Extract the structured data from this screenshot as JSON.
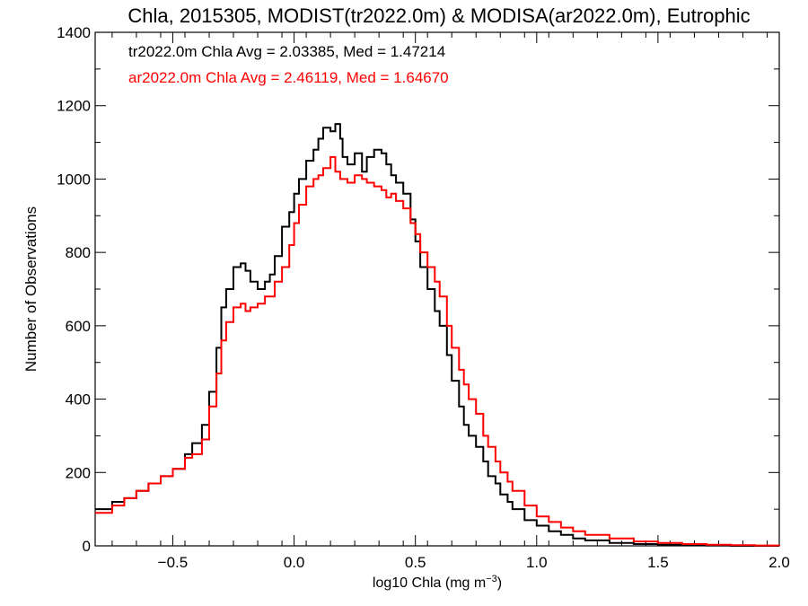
{
  "chart_data": {
    "type": "line",
    "title": "Chla, 2015305, MODIST(tr2022.0m) & MODISA(ar2022.0m), Eutrophic",
    "xlabel_main": "log10 Chla (mg m",
    "xlabel_sup": "−3",
    "xlabel_close": ")",
    "ylabel": "Number of Observations",
    "xlim": [
      -0.82,
      2.0
    ],
    "ylim": [
      0,
      1400
    ],
    "xticks": [
      -0.5,
      0.0,
      0.5,
      1.0,
      1.5,
      2.0
    ],
    "xtick_labels": [
      "−0.5",
      "0.0",
      "0.5",
      "1.0",
      "1.5",
      "2.0"
    ],
    "yticks": [
      0,
      200,
      400,
      600,
      800,
      1000,
      1200,
      1400
    ],
    "ytick_labels": [
      "0",
      "200",
      "400",
      "600",
      "800",
      "1000",
      "1200",
      "1400"
    ],
    "grid": false,
    "series": [
      {
        "name": "tr2022.0m",
        "color": "#000000",
        "annotation": "tr2022.0m Chla Avg = 2.03385, Med = 1.47214",
        "x": [
          -0.82,
          -0.75,
          -0.7,
          -0.65,
          -0.6,
          -0.55,
          -0.5,
          -0.45,
          -0.42,
          -0.38,
          -0.35,
          -0.32,
          -0.3,
          -0.28,
          -0.25,
          -0.22,
          -0.2,
          -0.18,
          -0.15,
          -0.12,
          -0.1,
          -0.08,
          -0.05,
          -0.02,
          0.0,
          0.02,
          0.05,
          0.08,
          0.1,
          0.12,
          0.15,
          0.17,
          0.19,
          0.2,
          0.22,
          0.25,
          0.28,
          0.3,
          0.33,
          0.36,
          0.38,
          0.4,
          0.42,
          0.45,
          0.48,
          0.5,
          0.52,
          0.55,
          0.58,
          0.6,
          0.63,
          0.65,
          0.68,
          0.7,
          0.72,
          0.75,
          0.78,
          0.8,
          0.83,
          0.85,
          0.88,
          0.9,
          0.95,
          1.0,
          1.05,
          1.1,
          1.15,
          1.2,
          1.3,
          1.4,
          1.5,
          1.6,
          1.7,
          1.8,
          1.9,
          2.0
        ],
        "values": [
          100,
          120,
          130,
          150,
          170,
          190,
          210,
          250,
          280,
          330,
          420,
          540,
          650,
          700,
          760,
          770,
          750,
          720,
          700,
          720,
          740,
          790,
          870,
          910,
          960,
          1000,
          1050,
          1080,
          1110,
          1140,
          1130,
          1150,
          1110,
          1060,
          1040,
          1070,
          1020,
          1060,
          1080,
          1070,
          1040,
          1010,
          990,
          960,
          890,
          830,
          760,
          700,
          640,
          600,
          520,
          450,
          380,
          330,
          300,
          270,
          230,
          190,
          170,
          140,
          120,
          100,
          70,
          55,
          40,
          30,
          20,
          15,
          8,
          5,
          3,
          2,
          1,
          0,
          0,
          0
        ]
      },
      {
        "name": "ar2022.0m",
        "color": "#ff0000",
        "annotation": "ar2022.0m Chla Avg = 2.46119, Med = 1.64670",
        "x": [
          -0.82,
          -0.75,
          -0.7,
          -0.65,
          -0.6,
          -0.55,
          -0.5,
          -0.45,
          -0.42,
          -0.38,
          -0.35,
          -0.32,
          -0.3,
          -0.28,
          -0.25,
          -0.22,
          -0.2,
          -0.18,
          -0.15,
          -0.12,
          -0.1,
          -0.08,
          -0.05,
          -0.02,
          0.0,
          0.02,
          0.05,
          0.08,
          0.1,
          0.12,
          0.15,
          0.17,
          0.19,
          0.2,
          0.22,
          0.25,
          0.28,
          0.3,
          0.33,
          0.36,
          0.38,
          0.4,
          0.42,
          0.45,
          0.48,
          0.5,
          0.52,
          0.55,
          0.58,
          0.6,
          0.63,
          0.65,
          0.68,
          0.7,
          0.72,
          0.75,
          0.78,
          0.8,
          0.83,
          0.85,
          0.88,
          0.9,
          0.95,
          1.0,
          1.05,
          1.1,
          1.15,
          1.2,
          1.3,
          1.4,
          1.5,
          1.6,
          1.7,
          1.8,
          1.9,
          2.0
        ],
        "values": [
          90,
          110,
          130,
          150,
          170,
          190,
          210,
          240,
          250,
          290,
          380,
          470,
          560,
          610,
          650,
          660,
          640,
          650,
          660,
          680,
          680,
          720,
          760,
          820,
          880,
          930,
          980,
          1000,
          1010,
          1030,
          1060,
          1020,
          1000,
          1000,
          990,
          1010,
          1000,
          990,
          980,
          970,
          950,
          960,
          940,
          920,
          880,
          850,
          800,
          760,
          720,
          680,
          600,
          540,
          480,
          440,
          400,
          360,
          300,
          270,
          230,
          200,
          175,
          150,
          110,
          80,
          65,
          50,
          40,
          30,
          20,
          12,
          8,
          5,
          3,
          2,
          1,
          0
        ]
      }
    ]
  }
}
